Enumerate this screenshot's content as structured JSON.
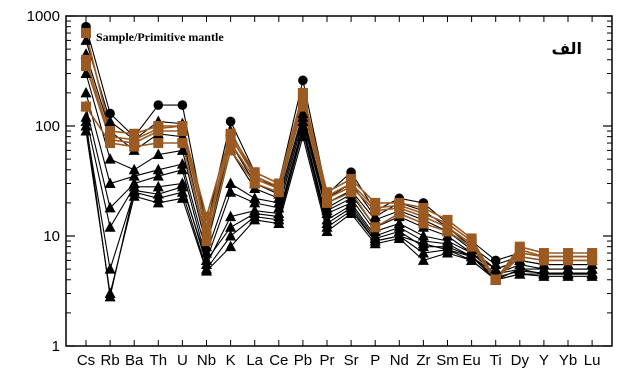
{
  "chart_data": {
    "type": "line",
    "title": "Sample/Primitive mantle",
    "corner_label": "الف",
    "yscale": "log",
    "ylim": [
      1,
      1000
    ],
    "y_ticks": [
      "1",
      "10",
      "100",
      "1000"
    ],
    "categories": [
      "Cs",
      "Rb",
      "Ba",
      "Th",
      "U",
      "Nb",
      "K",
      "La",
      "Ce",
      "Pb",
      "Pr",
      "Sr",
      "P",
      "Nd",
      "Zr",
      "Sm",
      "Eu",
      "Ti",
      "Dy",
      "Y",
      "Yb",
      "Lu"
    ],
    "colors": {
      "black": "#000000",
      "brown": "#9a5a22"
    },
    "series": [
      {
        "color": "black",
        "marker": "circle",
        "values": [
          800,
          130,
          80,
          155,
          155,
          12,
          110,
          38,
          30,
          260,
          24,
          38,
          17,
          22,
          20,
          13,
          9,
          6,
          7,
          6.5,
          6.5,
          6.5
        ]
      },
      {
        "color": "black",
        "marker": "triangle",
        "values": [
          600,
          110,
          75,
          110,
          105,
          10,
          90,
          35,
          27,
          180,
          22,
          30,
          15,
          20,
          17,
          12,
          8,
          5.5,
          6.5,
          6,
          6,
          6
        ]
      },
      {
        "color": "black",
        "marker": "triangle",
        "values": [
          450,
          90,
          60,
          85,
          80,
          9,
          70,
          30,
          24,
          150,
          20,
          26,
          14,
          17,
          14,
          11,
          7.5,
          5,
          6,
          5.5,
          5.5,
          5.5
        ]
      },
      {
        "color": "black",
        "marker": "triangle",
        "values": [
          300,
          50,
          40,
          55,
          60,
          8,
          60,
          27,
          22,
          130,
          18,
          24,
          12,
          15,
          12,
          10,
          7,
          5,
          6,
          5.5,
          5.5,
          5.5
        ]
      },
      {
        "color": "black",
        "marker": "triangle",
        "values": [
          200,
          30,
          35,
          40,
          45,
          7,
          30,
          22,
          20,
          120,
          17,
          22,
          11,
          13,
          10,
          9,
          7,
          4.5,
          5.5,
          5,
          5,
          5
        ]
      },
      {
        "color": "black",
        "marker": "triangle",
        "values": [
          150,
          18,
          30,
          35,
          40,
          6,
          25,
          20,
          18,
          110,
          16,
          20,
          10,
          12,
          9,
          8.5,
          6.5,
          4.5,
          5,
          5,
          5,
          5
        ]
      },
      {
        "color": "black",
        "marker": "triangle",
        "values": [
          120,
          12,
          28,
          28,
          30,
          5.5,
          15,
          17,
          16,
          100,
          14,
          19,
          9.5,
          11,
          8,
          8,
          6.5,
          4,
          5,
          4.5,
          4.5,
          4.5
        ]
      },
      {
        "color": "black",
        "marker": "triangle",
        "values": [
          100,
          5,
          25,
          22,
          25,
          5,
          10,
          15,
          14,
          90,
          12,
          17,
          9,
          10,
          7,
          7.5,
          6,
          4,
          4.5,
          4.5,
          4.5,
          4.5
        ]
      },
      {
        "color": "black",
        "marker": "triangle",
        "values": [
          90,
          3,
          23,
          20,
          22,
          4.8,
          8,
          14,
          13,
          80,
          11,
          16,
          8.5,
          9.5,
          6,
          7,
          6,
          4,
          4.5,
          4.3,
          4.3,
          4.3
        ]
      },
      {
        "color": "black",
        "marker": "triangle",
        "values": [
          110,
          2.8,
          26,
          24,
          28,
          6,
          12,
          16,
          15,
          95,
          13,
          18,
          9,
          10,
          8.5,
          7.5,
          6.5,
          4.2,
          4.8,
          4.6,
          4.6,
          4.6
        ]
      },
      {
        "color": "brown",
        "marker": "square",
        "values": [
          700,
          90,
          85,
          100,
          100,
          15,
          85,
          38,
          30,
          200,
          25,
          33,
          20,
          20,
          18,
          14,
          9.5,
          4,
          8,
          7,
          7,
          7
        ]
      },
      {
        "color": "brown",
        "marker": "square",
        "values": [
          400,
          80,
          75,
          95,
          100,
          12,
          80,
          35,
          28,
          190,
          23,
          30,
          18,
          19,
          16,
          13,
          9,
          4,
          7.5,
          6.5,
          6.5,
          6.5
        ]
      },
      {
        "color": "brown",
        "marker": "square",
        "values": [
          350,
          75,
          70,
          90,
          90,
          11,
          70,
          33,
          27,
          170,
          22,
          28,
          17,
          18,
          15,
          12,
          8.5,
          4,
          7,
          6.5,
          6.5,
          6.5
        ]
      },
      {
        "color": "brown",
        "marker": "square",
        "values": [
          150,
          70,
          65,
          70,
          70,
          9,
          60,
          30,
          25,
          150,
          20,
          25,
          12,
          16,
          13,
          11,
          8,
          4,
          6.5,
          6,
          6,
          6
        ]
      }
    ]
  }
}
